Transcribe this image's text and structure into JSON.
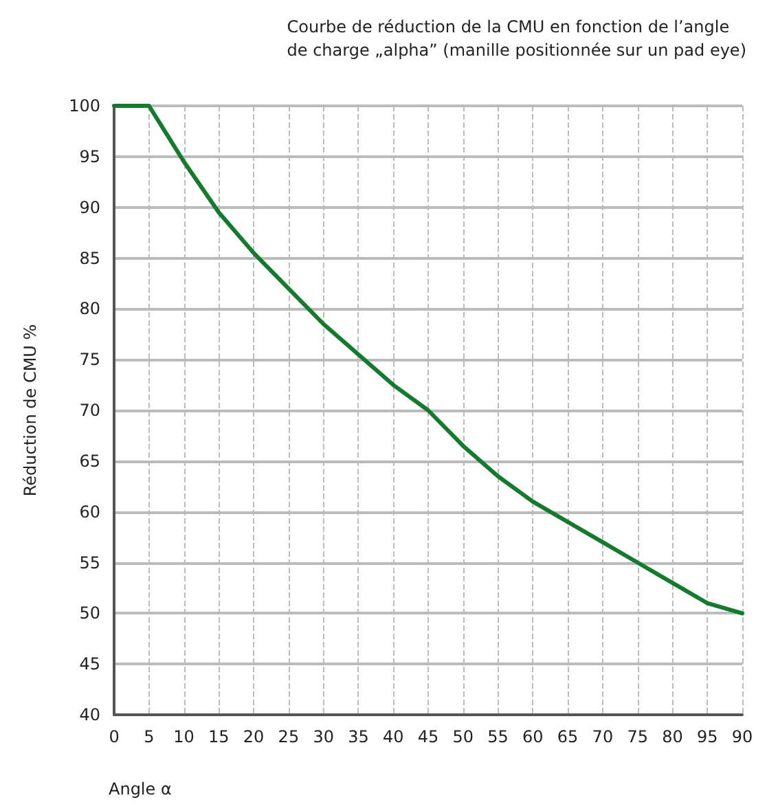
{
  "chart_data": {
    "type": "line",
    "title": "Courbe de réduction de la CMU en fonction de l’angle\nde charge „alpha” (manille positionnée sur un pad eye)",
    "xlabel": "Angle α",
    "ylabel": "Réduction de CMU %",
    "categories": [
      "0",
      "5",
      "10",
      "15",
      "20",
      "25",
      "30",
      "35",
      "40",
      "45",
      "50",
      "55",
      "60",
      "65",
      "70",
      "75",
      "80",
      "95",
      "90"
    ],
    "series": [
      {
        "color": "#137a2e",
        "values": [
          100,
          100,
          94.5,
          89.5,
          85.5,
          82,
          78.5,
          75.5,
          72.5,
          70,
          66.5,
          63.5,
          61,
          59,
          57,
          55,
          53,
          51,
          50
        ]
      }
    ],
    "ylim": [
      40,
      100
    ],
    "yticks": [
      40,
      45,
      50,
      55,
      60,
      65,
      70,
      75,
      80,
      85,
      90,
      95,
      100
    ],
    "grid": true,
    "marker": "none",
    "line_style": "solid"
  }
}
